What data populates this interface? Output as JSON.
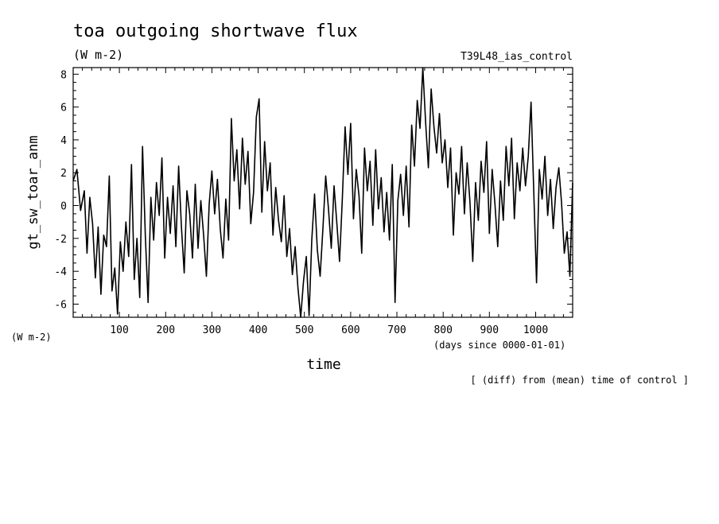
{
  "header": {
    "title": "toa outgoing shortwave flux",
    "units": "(W m-2)",
    "experiment": "T39L48_ias_control"
  },
  "footer": {
    "y_units": "(W m-2)",
    "x_units": "(days since 0000-01-01)",
    "note": "[ (diff) from (mean) time of control ]"
  },
  "chart_data": {
    "type": "line",
    "title": "toa outgoing shortwave flux",
    "xlabel": "time",
    "ylabel": "gt_sw_toar_anm",
    "xlim": [
      0,
      1080
    ],
    "ylim": [
      -6.8,
      8.4
    ],
    "xticks": [
      100,
      200,
      300,
      400,
      500,
      600,
      700,
      800,
      900,
      1000
    ],
    "yticks": [
      8,
      6,
      4,
      2,
      0,
      -2,
      -4,
      -6
    ],
    "grid": false,
    "series": [
      {
        "values": [
          [
            0,
            1.5
          ],
          [
            8,
            2.2
          ],
          [
            16,
            -0.3
          ],
          [
            24,
            0.9
          ],
          [
            30,
            -2.9
          ],
          [
            36,
            0.5
          ],
          [
            42,
            -1.1
          ],
          [
            48,
            -4.4
          ],
          [
            54,
            -1.3
          ],
          [
            60,
            -5.4
          ],
          [
            66,
            -1.8
          ],
          [
            72,
            -2.5
          ],
          [
            78,
            1.8
          ],
          [
            84,
            -5.2
          ],
          [
            90,
            -3.8
          ],
          [
            96,
            -6.6
          ],
          [
            102,
            -2.2
          ],
          [
            108,
            -4.0
          ],
          [
            114,
            -1.0
          ],
          [
            120,
            -3.1
          ],
          [
            126,
            2.5
          ],
          [
            132,
            -4.5
          ],
          [
            138,
            -2.0
          ],
          [
            144,
            -5.6
          ],
          [
            150,
            3.6
          ],
          [
            156,
            -1.8
          ],
          [
            162,
            -5.9
          ],
          [
            168,
            0.5
          ],
          [
            174,
            -2.1
          ],
          [
            180,
            1.4
          ],
          [
            186,
            -0.6
          ],
          [
            192,
            2.9
          ],
          [
            198,
            -3.2
          ],
          [
            204,
            0.5
          ],
          [
            210,
            -1.7
          ],
          [
            216,
            1.2
          ],
          [
            222,
            -2.5
          ],
          [
            228,
            2.4
          ],
          [
            234,
            -1.3
          ],
          [
            240,
            -4.1
          ],
          [
            246,
            0.9
          ],
          [
            252,
            -0.5
          ],
          [
            258,
            -3.2
          ],
          [
            264,
            1.3
          ],
          [
            270,
            -2.6
          ],
          [
            276,
            0.3
          ],
          [
            282,
            -1.8
          ],
          [
            288,
            -4.3
          ],
          [
            294,
            0.1
          ],
          [
            300,
            2.1
          ],
          [
            306,
            -0.5
          ],
          [
            312,
            1.6
          ],
          [
            318,
            -1.4
          ],
          [
            324,
            -3.2
          ],
          [
            330,
            0.4
          ],
          [
            336,
            -2.1
          ],
          [
            342,
            5.3
          ],
          [
            348,
            1.5
          ],
          [
            354,
            3.4
          ],
          [
            360,
            -0.2
          ],
          [
            366,
            4.1
          ],
          [
            372,
            1.3
          ],
          [
            378,
            3.3
          ],
          [
            384,
            -1.1
          ],
          [
            390,
            0.8
          ],
          [
            396,
            5.4
          ],
          [
            402,
            6.5
          ],
          [
            408,
            -0.4
          ],
          [
            414,
            3.9
          ],
          [
            420,
            0.9
          ],
          [
            426,
            2.6
          ],
          [
            432,
            -1.8
          ],
          [
            438,
            1.1
          ],
          [
            444,
            -0.9
          ],
          [
            450,
            -2.2
          ],
          [
            456,
            0.6
          ],
          [
            462,
            -3.1
          ],
          [
            468,
            -1.4
          ],
          [
            474,
            -4.2
          ],
          [
            480,
            -2.5
          ],
          [
            486,
            -5.0
          ],
          [
            492,
            -6.8
          ],
          [
            498,
            -4.6
          ],
          [
            504,
            -3.1
          ],
          [
            510,
            -6.7
          ],
          [
            516,
            -2.1
          ],
          [
            522,
            0.7
          ],
          [
            528,
            -2.7
          ],
          [
            534,
            -4.3
          ],
          [
            540,
            -1.4
          ],
          [
            546,
            1.8
          ],
          [
            552,
            -0.2
          ],
          [
            558,
            -2.6
          ],
          [
            564,
            1.2
          ],
          [
            570,
            -1.0
          ],
          [
            576,
            -3.4
          ],
          [
            582,
            0.4
          ],
          [
            588,
            4.8
          ],
          [
            594,
            1.9
          ],
          [
            600,
            5.0
          ],
          [
            606,
            -0.8
          ],
          [
            612,
            2.2
          ],
          [
            618,
            0.6
          ],
          [
            624,
            -2.9
          ],
          [
            630,
            3.5
          ],
          [
            636,
            0.9
          ],
          [
            642,
            2.7
          ],
          [
            648,
            -1.2
          ],
          [
            654,
            3.4
          ],
          [
            660,
            -0.2
          ],
          [
            666,
            1.7
          ],
          [
            672,
            -1.6
          ],
          [
            678,
            0.8
          ],
          [
            684,
            -2.1
          ],
          [
            690,
            2.5
          ],
          [
            696,
            -5.9
          ],
          [
            702,
            0.3
          ],
          [
            708,
            1.9
          ],
          [
            714,
            -0.6
          ],
          [
            720,
            2.4
          ],
          [
            726,
            -1.3
          ],
          [
            732,
            4.9
          ],
          [
            738,
            2.4
          ],
          [
            744,
            6.4
          ],
          [
            750,
            4.7
          ],
          [
            756,
            8.4
          ],
          [
            762,
            5.1
          ],
          [
            768,
            2.3
          ],
          [
            774,
            7.1
          ],
          [
            780,
            4.8
          ],
          [
            786,
            3.2
          ],
          [
            792,
            5.6
          ],
          [
            798,
            2.6
          ],
          [
            804,
            4.0
          ],
          [
            810,
            1.1
          ],
          [
            816,
            3.5
          ],
          [
            822,
            -1.8
          ],
          [
            828,
            2.0
          ],
          [
            834,
            0.7
          ],
          [
            840,
            3.6
          ],
          [
            846,
            -0.5
          ],
          [
            852,
            2.6
          ],
          [
            858,
            0.2
          ],
          [
            864,
            -3.4
          ],
          [
            870,
            1.4
          ],
          [
            876,
            -0.9
          ],
          [
            882,
            2.7
          ],
          [
            888,
            0.8
          ],
          [
            894,
            3.9
          ],
          [
            900,
            -1.7
          ],
          [
            906,
            2.2
          ],
          [
            912,
            0.1
          ],
          [
            918,
            -2.5
          ],
          [
            924,
            1.5
          ],
          [
            930,
            -0.9
          ],
          [
            936,
            3.6
          ],
          [
            942,
            1.2
          ],
          [
            948,
            4.1
          ],
          [
            954,
            -0.8
          ],
          [
            960,
            2.6
          ],
          [
            966,
            0.9
          ],
          [
            972,
            3.5
          ],
          [
            978,
            1.2
          ],
          [
            984,
            3.0
          ],
          [
            990,
            6.3
          ],
          [
            996,
            0.7
          ],
          [
            1002,
            -4.7
          ],
          [
            1008,
            2.2
          ],
          [
            1014,
            0.4
          ],
          [
            1020,
            3.0
          ],
          [
            1026,
            -0.6
          ],
          [
            1032,
            1.6
          ],
          [
            1038,
            -1.4
          ],
          [
            1044,
            1.1
          ],
          [
            1050,
            2.3
          ],
          [
            1056,
            0.2
          ],
          [
            1062,
            -2.9
          ],
          [
            1068,
            -1.6
          ],
          [
            1074,
            -4.3
          ],
          [
            1080,
            1.4
          ]
        ]
      }
    ]
  }
}
